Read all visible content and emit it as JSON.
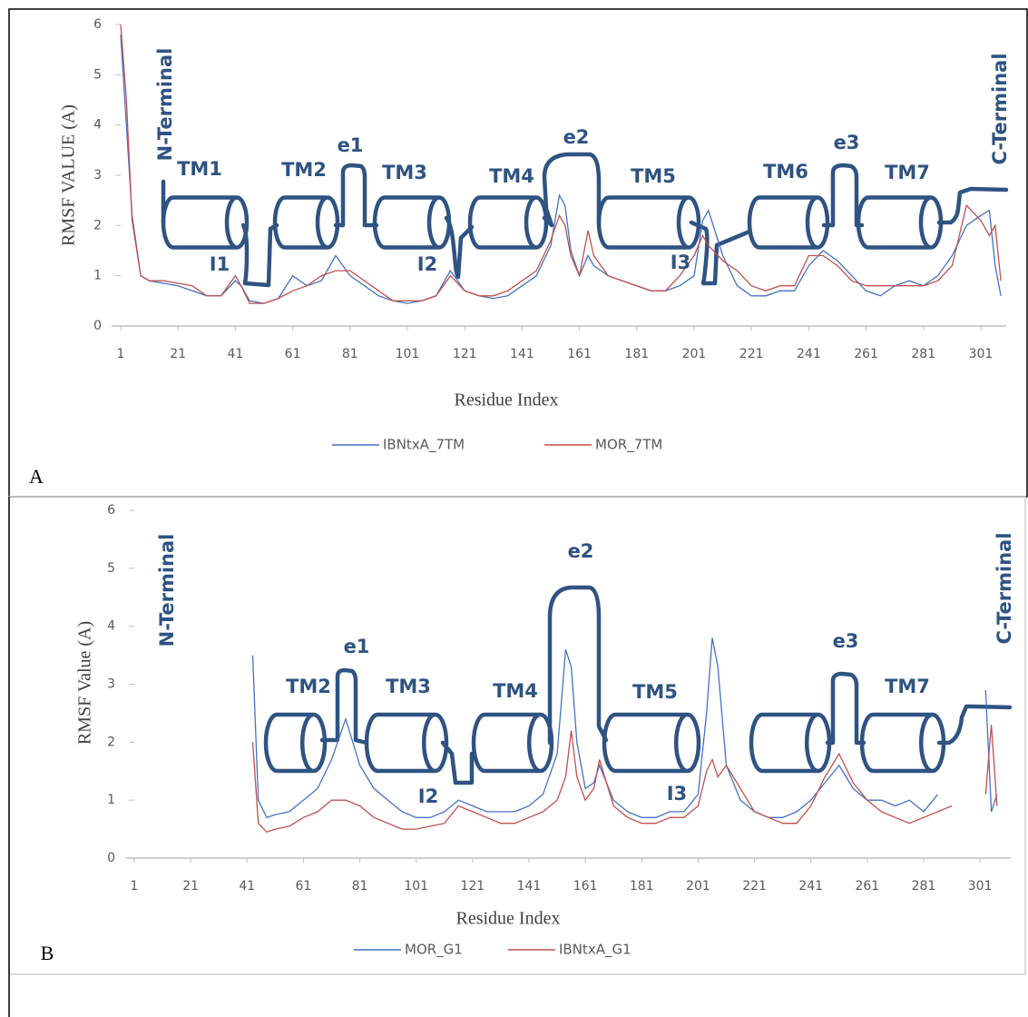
{
  "chart_data": [
    {
      "type": "line",
      "panel_label": "A",
      "y_label": "RMSF VALUE (A)",
      "x_label": "Residue Index",
      "xlim": [
        1,
        310
      ],
      "ylim": [
        0,
        6
      ],
      "xticks": [
        1,
        21,
        41,
        61,
        81,
        101,
        121,
        141,
        161,
        181,
        201,
        221,
        241,
        261,
        281,
        301
      ],
      "yticks": [
        0,
        1,
        2,
        3,
        4,
        5,
        6
      ],
      "grid": false,
      "x": [
        1,
        3,
        5,
        8,
        11,
        16,
        21,
        26,
        31,
        36,
        41,
        43,
        46,
        51,
        56,
        61,
        66,
        71,
        76,
        81,
        86,
        91,
        96,
        101,
        106,
        111,
        116,
        121,
        126,
        131,
        136,
        141,
        146,
        151,
        154,
        156,
        158,
        161,
        164,
        166,
        171,
        176,
        181,
        186,
        191,
        196,
        201,
        204,
        206,
        211,
        216,
        221,
        226,
        231,
        236,
        241,
        246,
        251,
        256,
        261,
        266,
        271,
        276,
        281,
        286,
        291,
        296,
        301,
        304,
        306,
        308
      ],
      "series": [
        {
          "name": "IBNtxA_7TM",
          "color": "#4472c4",
          "values": [
            5.8,
            4,
            2.2,
            1.0,
            0.9,
            0.85,
            0.8,
            0.7,
            0.6,
            0.6,
            0.9,
            0.8,
            0.5,
            0.45,
            0.55,
            1.0,
            0.8,
            0.9,
            1.4,
            1.0,
            0.8,
            0.6,
            0.5,
            0.45,
            0.5,
            0.6,
            1.1,
            0.7,
            0.6,
            0.55,
            0.6,
            0.8,
            1.0,
            1.6,
            2.6,
            2.4,
            1.5,
            1.0,
            1.4,
            1.2,
            1.0,
            0.9,
            0.8,
            0.7,
            0.7,
            0.8,
            1.0,
            2.1,
            2.3,
            1.4,
            0.8,
            0.6,
            0.6,
            0.7,
            0.7,
            1.2,
            1.5,
            1.3,
            1.0,
            0.7,
            0.6,
            0.8,
            0.9,
            0.8,
            1.0,
            1.4,
            2.0,
            2.2,
            2.3,
            1.2,
            0.6
          ]
        },
        {
          "name": "MOR_7TM",
          "color": "#c0504d",
          "values": [
            6,
            4.5,
            2.1,
            1.0,
            0.9,
            0.9,
            0.85,
            0.8,
            0.6,
            0.6,
            1.0,
            0.8,
            0.45,
            0.45,
            0.55,
            0.7,
            0.8,
            1.0,
            1.1,
            1.1,
            0.9,
            0.7,
            0.5,
            0.5,
            0.5,
            0.6,
            1.0,
            0.7,
            0.6,
            0.6,
            0.7,
            0.9,
            1.1,
            1.7,
            2.2,
            2.0,
            1.4,
            1.0,
            1.9,
            1.4,
            1.0,
            0.9,
            0.8,
            0.7,
            0.7,
            1.0,
            1.4,
            1.8,
            1.6,
            1.3,
            1.1,
            0.8,
            0.7,
            0.8,
            0.8,
            1.4,
            1.4,
            1.2,
            0.9,
            0.8,
            0.8,
            0.8,
            0.8,
            0.8,
            0.9,
            1.2,
            2.4,
            2.1,
            1.8,
            2.0,
            0.9
          ]
        }
      ],
      "annotations": [
        "N-Terminal",
        "TM1",
        "TM2",
        "e1",
        "TM3",
        "TM4",
        "e2",
        "TM5",
        "TM6",
        "e3",
        "TM7",
        "I1",
        "I2",
        "I3",
        "C-Terminal"
      ]
    },
    {
      "type": "line",
      "panel_label": "B",
      "y_label": "RMSF Value (A)",
      "x_label": "Residue Index",
      "xlim": [
        1,
        312
      ],
      "ylim": [
        0,
        6
      ],
      "xticks": [
        1,
        21,
        41,
        61,
        81,
        101,
        121,
        141,
        161,
        181,
        201,
        221,
        241,
        261,
        281,
        301
      ],
      "yticks": [
        0,
        1,
        2,
        3,
        4,
        5,
        6
      ],
      "grid": false,
      "x": [
        43,
        45,
        48,
        51,
        56,
        61,
        66,
        71,
        76,
        81,
        86,
        91,
        96,
        101,
        106,
        111,
        116,
        121,
        126,
        131,
        136,
        141,
        146,
        151,
        154,
        156,
        158,
        161,
        164,
        166,
        171,
        176,
        181,
        186,
        191,
        196,
        201,
        204,
        206,
        208,
        211,
        216,
        221,
        226,
        231,
        236,
        241,
        246,
        251,
        256,
        261,
        266,
        271,
        276,
        281,
        286,
        291,
        296,
        303,
        305,
        307
      ],
      "series": [
        {
          "name": "MOR_G1",
          "color": "#4472c4",
          "values": [
            3.5,
            1.0,
            0.7,
            0.75,
            0.8,
            1.0,
            1.2,
            1.7,
            2.4,
            1.6,
            1.2,
            1.0,
            0.8,
            0.7,
            0.7,
            0.8,
            1.0,
            0.9,
            0.8,
            0.8,
            0.8,
            0.9,
            1.1,
            1.8,
            3.6,
            3.3,
            2.0,
            1.2,
            1.3,
            1.6,
            1.0,
            0.8,
            0.7,
            0.7,
            0.8,
            0.8,
            1.1,
            2.5,
            3.8,
            3.3,
            1.6,
            1.0,
            0.8,
            0.7,
            0.7,
            0.8,
            1.0,
            1.3,
            1.6,
            1.2,
            1.0,
            1.0,
            0.9,
            1.0,
            0.8,
            1.1,
            null,
            null,
            2.9,
            0.8,
            1.1
          ]
        },
        {
          "name": "IBNtxA_G1",
          "color": "#c0504d",
          "values": [
            2.0,
            0.6,
            0.45,
            0.5,
            0.55,
            0.7,
            0.8,
            1.0,
            1.0,
            0.9,
            0.7,
            0.6,
            0.5,
            0.5,
            0.55,
            0.6,
            0.9,
            0.8,
            0.7,
            0.6,
            0.6,
            0.7,
            0.8,
            1.0,
            1.4,
            2.2,
            1.4,
            1.0,
            1.2,
            1.7,
            0.9,
            0.7,
            0.6,
            0.6,
            0.7,
            0.7,
            0.9,
            1.5,
            1.7,
            1.4,
            1.6,
            1.2,
            0.8,
            0.7,
            0.6,
            0.6,
            0.9,
            1.4,
            1.8,
            1.3,
            1.0,
            0.8,
            0.7,
            0.6,
            0.7,
            0.8,
            0.9,
            null,
            1.1,
            2.3,
            0.9
          ]
        }
      ],
      "annotations": [
        "N-Terminal",
        "TM2",
        "e1",
        "TM3",
        "TM4",
        "e2",
        "TM5",
        "e3",
        "TM7",
        "I2",
        "I3",
        "C-Terminal"
      ]
    }
  ]
}
